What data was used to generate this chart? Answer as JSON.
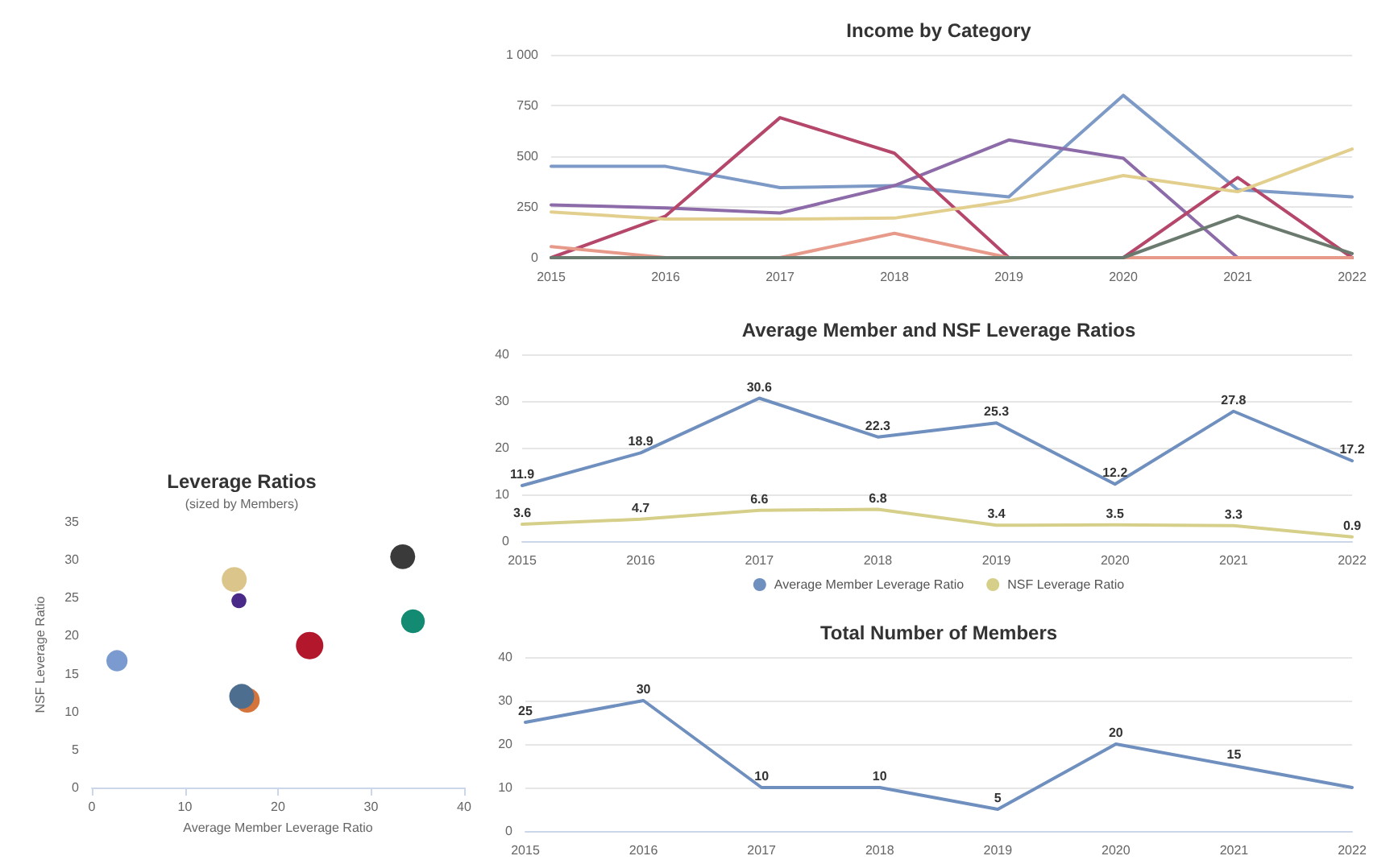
{
  "chart_data": [
    {
      "type": "line",
      "title": "Income by Category",
      "categories": [
        "2015",
        "2016",
        "2017",
        "2018",
        "2019",
        "2020",
        "2021",
        "2022"
      ],
      "series": [
        {
          "color": "#7d99c6",
          "values": [
            450,
            450,
            345,
            355,
            300,
            800,
            335,
            300
          ]
        },
        {
          "color": "#8c6ba8",
          "values": [
            260,
            245,
            220,
            355,
            580,
            490,
            0,
            0
          ]
        },
        {
          "color": "#b5476a",
          "values": [
            0,
            205,
            690,
            515,
            0,
            0,
            395,
            0
          ]
        },
        {
          "color": "#e2cf8e",
          "values": [
            225,
            190,
            190,
            195,
            280,
            405,
            325,
            535
          ]
        },
        {
          "color": "#e79a8a",
          "values": [
            55,
            0,
            0,
            120,
            0,
            0,
            0,
            0
          ]
        },
        {
          "color": "#6b7a6e",
          "values": [
            0,
            0,
            0,
            0,
            0,
            0,
            205,
            20
          ]
        }
      ],
      "ylim": [
        0,
        1000
      ],
      "yticks": [
        0,
        250,
        500,
        750,
        {
          "value": 1000,
          "label": "1 000"
        }
      ],
      "grid": "y",
      "marker": "none",
      "legend": false
    },
    {
      "type": "line",
      "title": "Average Member and NSF Leverage Ratios",
      "categories": [
        "2015",
        "2016",
        "2017",
        "2018",
        "2019",
        "2020",
        "2021",
        "2022"
      ],
      "series": [
        {
          "name": "Average Member Leverage Ratio",
          "color": "#6f8fbf",
          "values": [
            11.9,
            18.9,
            30.6,
            22.3,
            25.3,
            12.2,
            27.8,
            17.2
          ]
        },
        {
          "name": "NSF Leverage Ratio",
          "color": "#d6cf8a",
          "values": [
            3.6,
            4.7,
            6.6,
            6.8,
            3.4,
            3.5,
            3.3,
            0.9
          ]
        }
      ],
      "ylim": [
        0,
        40
      ],
      "yticks": [
        0,
        10,
        20,
        30,
        40
      ],
      "grid": "y",
      "marker": "none",
      "data_labels": true,
      "legend": "bottom"
    },
    {
      "type": "bubble",
      "title": "Leverage Ratios",
      "subtitle": "(sized by Members)",
      "xlabel": "Average Member Leverage Ratio",
      "ylabel": "NSF Leverage Ratio",
      "x": [
        2.7,
        15.3,
        15.8,
        16.7,
        16.1,
        23.4,
        33.4,
        34.5
      ],
      "values": [
        16.7,
        27.4,
        24.6,
        11.5,
        12.0,
        18.7,
        30.4,
        21.9
      ],
      "sizes": [
        0.6,
        0.83,
        0.3,
        0.83,
        0.83,
        1,
        0.83,
        0.75
      ],
      "colors": [
        "#7b9bd0",
        "#dcc58a",
        "#4a2a88",
        "#d4733a",
        "#4d6e8f",
        "#b3172b",
        "#3a3a3a",
        "#138a72"
      ],
      "xlim": [
        0,
        40
      ],
      "xticks": [
        0,
        10,
        20,
        30,
        40
      ],
      "ylim": [
        0,
        35
      ],
      "yticks": [
        0,
        5,
        10,
        15,
        20,
        25,
        30,
        35
      ],
      "grid": false,
      "legend": false
    },
    {
      "type": "line",
      "title": "Total Number of Members",
      "categories": [
        "2015",
        "2016",
        "2017",
        "2018",
        "2019",
        "2020",
        "2021",
        "2022"
      ],
      "values": [
        25,
        30,
        10,
        10,
        5,
        20,
        15,
        10
      ],
      "color": "#6f8fbf",
      "value_labels": [
        "25",
        "30",
        "10",
        "10",
        "5",
        "20",
        "15",
        null
      ],
      "ylim": [
        0,
        40
      ],
      "yticks": [
        0,
        10,
        20,
        30,
        40
      ],
      "grid": "y",
      "marker": "none",
      "legend": false
    }
  ]
}
